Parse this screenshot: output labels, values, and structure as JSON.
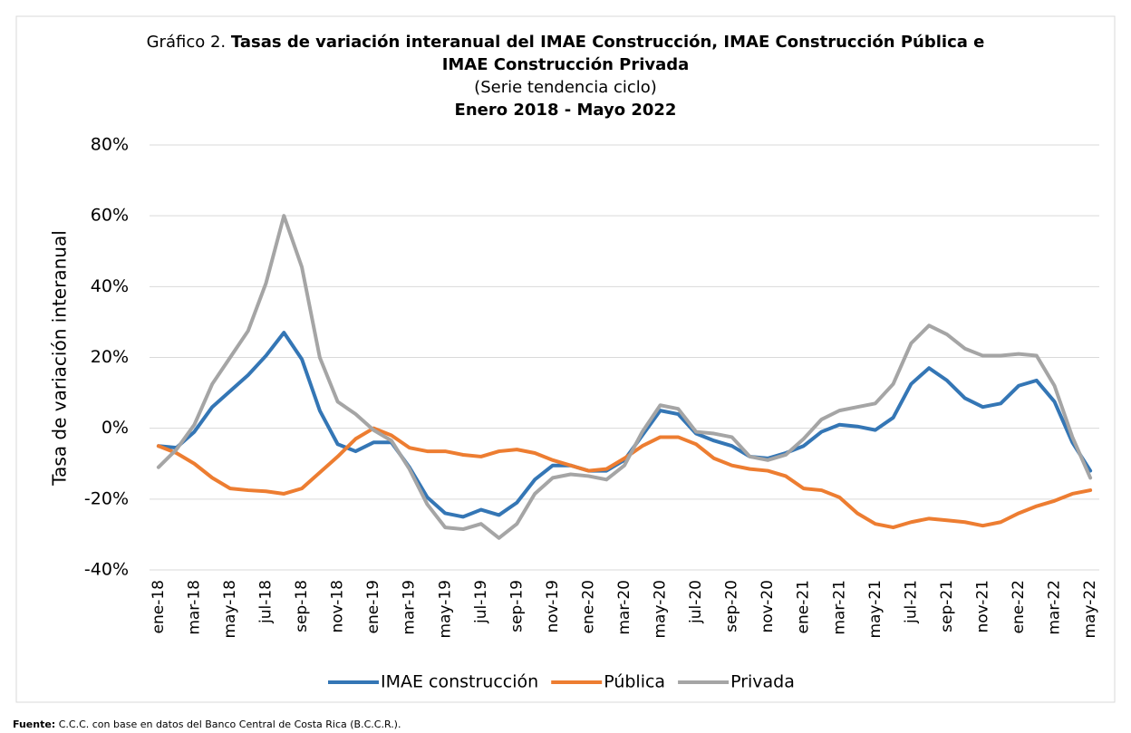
{
  "chart_data": {
    "type": "line",
    "title_prefix": "Gráfico 2.",
    "title": "Tasas de variación interanual del IMAE Construcción, IMAE Construcción Pública e IMAE Construcción Privada",
    "subtitle": "(Serie tendencia ciclo)",
    "period": "Enero 2018 - Mayo 2022",
    "y_label": "Tasa de variación interanual",
    "source_label": "Fuente:",
    "source": "C.C.C. con base en datos del Banco Central de Costa Rica (B.C.C.R.).",
    "categories": [
      "ene-18",
      null,
      "mar-18",
      null,
      "may-18",
      null,
      "jul-18",
      null,
      "sep-18",
      null,
      "nov-18",
      null,
      "ene-19",
      null,
      "mar-19",
      null,
      "may-19",
      null,
      "jul-19",
      null,
      "sep-19",
      null,
      "nov-19",
      null,
      "ene-20",
      null,
      "mar-20",
      null,
      "may-20",
      null,
      "jul-20",
      null,
      "sep-20",
      null,
      "nov-20",
      null,
      "ene-21",
      null,
      "mar-21",
      null,
      "may-21",
      null,
      "jul-21",
      null,
      "sep-21",
      null,
      "nov-21",
      null,
      "ene-22",
      null,
      "mar-22",
      null,
      "may-22"
    ],
    "series": [
      {
        "name": "IMAE construcción",
        "color": "#3476b5",
        "values": [
          -5,
          -5.5,
          -1,
          6,
          10.5,
          15,
          20.5,
          27,
          19.5,
          5,
          -4.5,
          -6.5,
          -4,
          -4,
          -11,
          -19.5,
          -24,
          -25,
          -23,
          -24.5,
          -21,
          -14.5,
          -10.5,
          -10.5,
          -12,
          -12,
          -9,
          -2,
          5,
          4,
          -1.5,
          -3.5,
          -5,
          -8,
          -8.5,
          -7,
          -5,
          -1,
          1,
          0.5,
          -0.5,
          3,
          12.5,
          17,
          13.5,
          8.5,
          6,
          7,
          12,
          13.5,
          7.5,
          -4,
          -12
        ]
      },
      {
        "name": "Pública",
        "color": "#ed7d31",
        "values": [
          -5,
          -7,
          -10,
          -14,
          -17,
          -17.5,
          -17.8,
          -18.5,
          -17,
          -12.5,
          -8,
          -3,
          0,
          -2,
          -5.5,
          -6.5,
          -6.5,
          -7.5,
          -8,
          -6.5,
          -6,
          -7,
          -9,
          -10.5,
          -12,
          -11.5,
          -8.5,
          -5,
          -2.5,
          -2.5,
          -4.5,
          -8.5,
          -10.5,
          -11.5,
          -12,
          -13.5,
          -17,
          -17.5,
          -19.5,
          -24,
          -27,
          -28,
          -26.5,
          -25.5,
          -26,
          -26.5,
          -27.5,
          -26.5,
          -24,
          -22,
          -20.5,
          -18.5,
          -17.5
        ]
      },
      {
        "name": "Privada",
        "color": "#a5a5a5",
        "values": [
          -11,
          -6,
          1,
          12.5,
          20,
          27.5,
          41,
          60,
          45.5,
          20,
          7.5,
          4,
          -0.5,
          -3.5,
          -11.5,
          -21.5,
          -28,
          -28.5,
          -27,
          -31,
          -27,
          -18.5,
          -14,
          -13,
          -13.5,
          -14.5,
          -10.5,
          -1,
          6.5,
          5.5,
          -1,
          -1.5,
          -2.5,
          -8,
          -9,
          -7.5,
          -3,
          2.5,
          5,
          6,
          7,
          12.5,
          24,
          29,
          26.5,
          22.5,
          20.5,
          20.5,
          21,
          20.5,
          12,
          -2.5,
          -14
        ]
      }
    ],
    "ylim": [
      -40,
      80
    ],
    "yticks": [
      {
        "value": -40,
        "label": "-40%"
      },
      {
        "value": -20,
        "label": "-20%"
      },
      {
        "value": 0,
        "label": "0%"
      },
      {
        "value": 20,
        "label": "20%"
      },
      {
        "value": 40,
        "label": "40%"
      },
      {
        "value": 60,
        "label": "60%"
      },
      {
        "value": 80,
        "label": "80%"
      }
    ],
    "grid": true,
    "legend": "bottom"
  }
}
